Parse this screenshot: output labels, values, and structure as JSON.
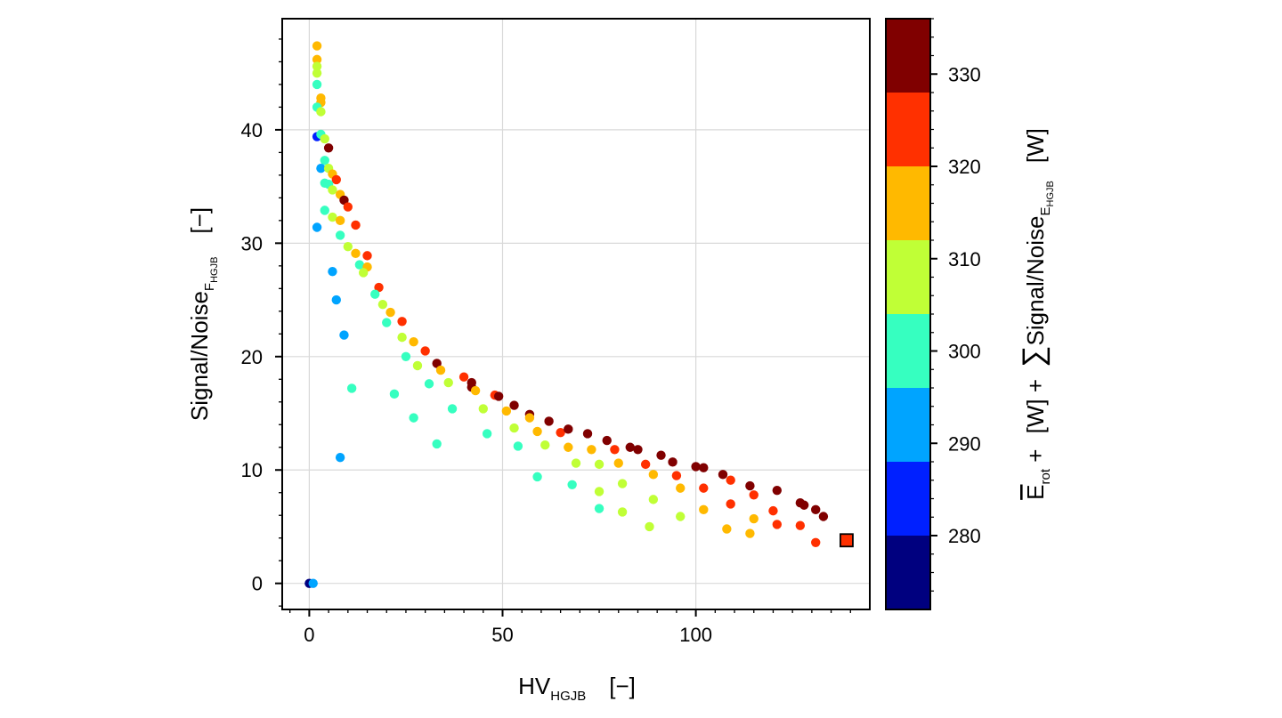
{
  "chart_data": {
    "type": "scatter",
    "xlabel": {
      "main": "HV",
      "sub": "HGJB",
      "unit": "[−]"
    },
    "ylabel": {
      "main": "Signal/Noise",
      "sub": "F",
      "subsub": "HGJB",
      "unit": "[−]"
    },
    "xlim": [
      -7,
      145
    ],
    "ylim": [
      -2.3,
      49.8
    ],
    "xticks": [
      0,
      50,
      100
    ],
    "xtick_labels": [
      "0",
      "50",
      "100"
    ],
    "yticks": [
      0,
      10,
      20,
      30,
      40
    ],
    "ytick_labels": [
      "0",
      "10",
      "20",
      "30",
      "40"
    ],
    "grid": true,
    "colorbar": {
      "vmin": 272,
      "vmax": 336,
      "ticks": [
        280,
        290,
        300,
        310,
        320,
        330
      ],
      "tick_labels": [
        "280",
        "290",
        "300",
        "310",
        "320",
        "330"
      ],
      "bands": [
        {
          "from": 272,
          "to": 280,
          "color": "#00007f"
        },
        {
          "from": 280,
          "to": 288,
          "color": "#0020ff"
        },
        {
          "from": 288,
          "to": 296,
          "color": "#00a4ff"
        },
        {
          "from": 296,
          "to": 304,
          "color": "#36ffc0"
        },
        {
          "from": 304,
          "to": 312,
          "color": "#c0ff36"
        },
        {
          "from": 312,
          "to": 320,
          "color": "#ffb900"
        },
        {
          "from": 320,
          "to": 328,
          "color": "#ff3000"
        },
        {
          "from": 328,
          "to": 336,
          "color": "#800000"
        }
      ],
      "label": {
        "part1": "E",
        "part1_sub": "rot",
        "plus1": " + ",
        "part2": "[W] + ",
        "sum": "∑",
        "part3": "Signal/Noise",
        "part3_sub": "E",
        "part3_subsub": "HGJB",
        "unit": "[W]"
      }
    },
    "points": [
      [
        0.0,
        0.0,
        276
      ],
      [
        1.0,
        0.0,
        291
      ],
      [
        2.0,
        47.4,
        316
      ],
      [
        2.0,
        46.2,
        316
      ],
      [
        2.0,
        45.6,
        309
      ],
      [
        2.0,
        45.0,
        309
      ],
      [
        2.0,
        44.0,
        299
      ],
      [
        3.0,
        42.8,
        316
      ],
      [
        3.0,
        42.4,
        316
      ],
      [
        2.0,
        42.0,
        299
      ],
      [
        3.0,
        41.6,
        309
      ],
      [
        2.0,
        39.4,
        284
      ],
      [
        3.0,
        39.6,
        299
      ],
      [
        4.0,
        39.2,
        309
      ],
      [
        5.0,
        38.4,
        331
      ],
      [
        4.0,
        37.3,
        299
      ],
      [
        3.0,
        36.6,
        290
      ],
      [
        5.0,
        36.6,
        310
      ],
      [
        6.0,
        36.1,
        316
      ],
      [
        7.0,
        35.6,
        324
      ],
      [
        4.0,
        35.3,
        299
      ],
      [
        5.0,
        35.2,
        299
      ],
      [
        6.0,
        34.7,
        309
      ],
      [
        8.0,
        34.3,
        316
      ],
      [
        9.0,
        33.8,
        331
      ],
      [
        10.0,
        33.2,
        324
      ],
      [
        4.0,
        32.9,
        299
      ],
      [
        6.0,
        32.3,
        309
      ],
      [
        8.0,
        32.0,
        316
      ],
      [
        12.0,
        31.6,
        324
      ],
      [
        2.0,
        31.4,
        290
      ],
      [
        8.0,
        30.7,
        299
      ],
      [
        10.0,
        29.7,
        309
      ],
      [
        12.0,
        29.1,
        316
      ],
      [
        15.0,
        28.9,
        324
      ],
      [
        13.0,
        28.1,
        299
      ],
      [
        15.0,
        27.9,
        316
      ],
      [
        14.0,
        27.4,
        309
      ],
      [
        6.0,
        27.5,
        290
      ],
      [
        18.0,
        26.1,
        324
      ],
      [
        17.0,
        25.5,
        299
      ],
      [
        19.0,
        24.6,
        309
      ],
      [
        7.0,
        25.0,
        290
      ],
      [
        21.0,
        23.9,
        316
      ],
      [
        24.0,
        23.1,
        324
      ],
      [
        20.0,
        23.0,
        299
      ],
      [
        9.0,
        21.9,
        290
      ],
      [
        24.0,
        21.7,
        309
      ],
      [
        27.0,
        21.3,
        316
      ],
      [
        30.0,
        20.5,
        324
      ],
      [
        25.0,
        20.0,
        299
      ],
      [
        28.0,
        19.2,
        309
      ],
      [
        33.0,
        19.4,
        331
      ],
      [
        34.0,
        18.8,
        316
      ],
      [
        40.0,
        18.2,
        324
      ],
      [
        36.0,
        17.7,
        309
      ],
      [
        31.0,
        17.6,
        299
      ],
      [
        42.0,
        17.7,
        331
      ],
      [
        42.0,
        17.3,
        331
      ],
      [
        43.0,
        17.0,
        316
      ],
      [
        11.0,
        17.2,
        299
      ],
      [
        22.0,
        16.7,
        299
      ],
      [
        48.0,
        16.6,
        324
      ],
      [
        49.0,
        16.5,
        331
      ],
      [
        37.0,
        15.4,
        299
      ],
      [
        45.0,
        15.4,
        309
      ],
      [
        51.0,
        15.2,
        316
      ],
      [
        53.0,
        15.7,
        331
      ],
      [
        57.0,
        14.9,
        331
      ],
      [
        57.0,
        14.6,
        316
      ],
      [
        27.0,
        14.6,
        299
      ],
      [
        62.0,
        14.3,
        331
      ],
      [
        53.0,
        13.7,
        309
      ],
      [
        59.0,
        13.4,
        316
      ],
      [
        65.0,
        13.3,
        324
      ],
      [
        67.0,
        13.6,
        331
      ],
      [
        72.0,
        13.2,
        331
      ],
      [
        46.0,
        13.2,
        299
      ],
      [
        33.0,
        12.3,
        299
      ],
      [
        77.0,
        12.6,
        331
      ],
      [
        54.0,
        12.1,
        299
      ],
      [
        61.0,
        12.2,
        309
      ],
      [
        67.0,
        12.0,
        316
      ],
      [
        79.0,
        11.8,
        324
      ],
      [
        83.0,
        12.0,
        331
      ],
      [
        85.0,
        11.8,
        331
      ],
      [
        8.0,
        11.1,
        290
      ],
      [
        73.0,
        11.8,
        316
      ],
      [
        91.0,
        11.3,
        331
      ],
      [
        94.0,
        10.7,
        331
      ],
      [
        69.0,
        10.6,
        309
      ],
      [
        75.0,
        10.5,
        309
      ],
      [
        80.0,
        10.6,
        316
      ],
      [
        87.0,
        10.5,
        324
      ],
      [
        100.0,
        10.3,
        331
      ],
      [
        102.0,
        10.2,
        331
      ],
      [
        89.0,
        9.6,
        316
      ],
      [
        95.0,
        9.5,
        324
      ],
      [
        107.0,
        9.6,
        331
      ],
      [
        59.0,
        9.4,
        299
      ],
      [
        109.0,
        9.1,
        324
      ],
      [
        68.0,
        8.7,
        299
      ],
      [
        81.0,
        8.8,
        309
      ],
      [
        96.0,
        8.4,
        316
      ],
      [
        102.0,
        8.4,
        324
      ],
      [
        114.0,
        8.6,
        331
      ],
      [
        75.0,
        8.1,
        309
      ],
      [
        115.0,
        7.8,
        324
      ],
      [
        121.0,
        8.2,
        331
      ],
      [
        89.0,
        7.4,
        309
      ],
      [
        109.0,
        7.0,
        324
      ],
      [
        127.0,
        7.1,
        331
      ],
      [
        128.0,
        6.9,
        331
      ],
      [
        75.0,
        6.6,
        299
      ],
      [
        102.0,
        6.5,
        316
      ],
      [
        120.0,
        6.4,
        324
      ],
      [
        81.0,
        6.3,
        309
      ],
      [
        131.0,
        6.5,
        331
      ],
      [
        133.0,
        5.9,
        331
      ],
      [
        96.0,
        5.9,
        309
      ],
      [
        115.0,
        5.7,
        316
      ],
      [
        121.0,
        5.2,
        324
      ],
      [
        127.0,
        5.1,
        324
      ],
      [
        88.0,
        5.0,
        309
      ],
      [
        108.0,
        4.8,
        316
      ],
      [
        114.0,
        4.4,
        316
      ],
      [
        131.0,
        3.6,
        324
      ]
    ],
    "highlight": {
      "x": 139,
      "y": 3.8,
      "value": 322,
      "marker": "square"
    }
  }
}
